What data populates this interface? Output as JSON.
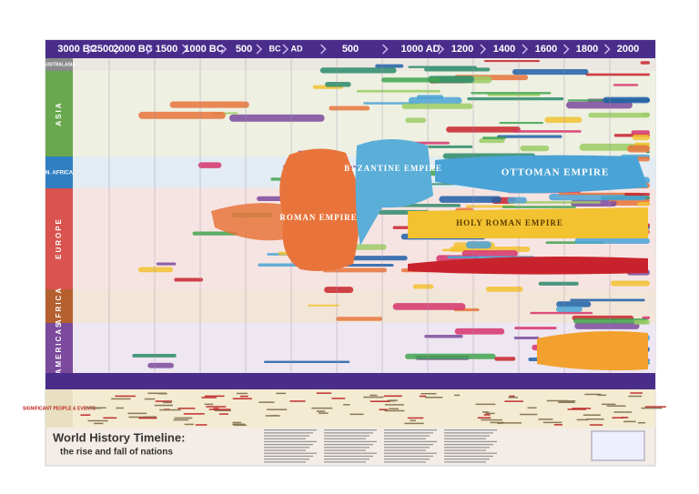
{
  "header": {
    "dates": [
      "3000 BC",
      "2500",
      "2000 BC",
      "1500",
      "1000 BC",
      "500",
      "BC",
      "AD",
      "500",
      "1000 AD",
      "1200",
      "1400",
      "1600",
      "1800",
      "2000"
    ]
  },
  "regions": [
    "AUSTRALASIA",
    "ASIA",
    "N. AFRICA",
    "EUROPE",
    "AFRICA",
    "AMERICAS"
  ],
  "empires": [
    "ROMAN EMPIRE",
    "BYZANTINE EMPIRE",
    "OTTOMAN EMPIRE",
    "HOLY ROMAN EMPIRE"
  ],
  "side_label": "SIGNIFICANT PEOPLE & EVENTS",
  "title": "World History Timeline:",
  "subtitle": "the rise and fall of nations"
}
